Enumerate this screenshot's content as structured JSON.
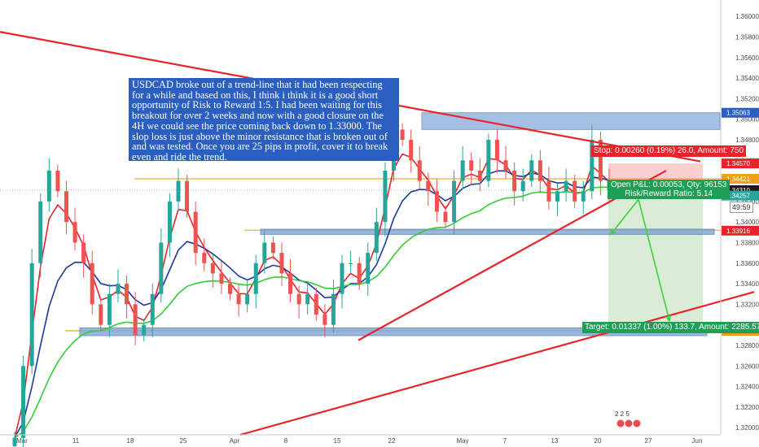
{
  "note": {
    "text": "USDCAD broke out of a trend-line that it had been respecting for a while and based on this, I think i think it is a good short opportunity of Risk to Reward 1:5. I had been waiting for this breakout for over 2 weeks and now with a good closure on the 4H we could see the price coming back down to 1.33000. The slop loss is just above the minor resistance that is broken out of and was tested. Once you are 25 pips in profit, cover it to break even and ride the trend."
  },
  "position": {
    "stop_label": "Stop: 0.00260 (0.19%) 26.0, Amount: 750",
    "open_pl_label": "Open P&L: 0.00053, Qty: 96153",
    "risk_reward_label": "Risk/Reward Ratio: 5.14",
    "target_label": "Target: 0.01337 (1.00%) 133.7, Amount: 2285.57"
  },
  "countdown": "49:59",
  "event_markers": "2 2 5",
  "colors": {
    "trendline": "#e8232a",
    "orange_level": "#f0a017",
    "zone": "#7fa6d6",
    "ema_fast": "#e8232a",
    "ema_mid": "#1a3a9c",
    "ema_slow": "#33cc33",
    "candle_up": "#26a69a",
    "candle_down": "#ef5350",
    "stop_zone": "#f7c6c6",
    "target_zone": "#d5ead0"
  },
  "chart_data": {
    "type": "candlestick",
    "symbol": "USDCAD",
    "timeframe": "4H",
    "x_ticks": [
      "Mar",
      "11",
      "18",
      "25",
      "Apr",
      "8",
      "15",
      "22",
      "May",
      "7",
      "13",
      "20",
      "27",
      "Jun"
    ],
    "y_ticks": [
      "1.36000",
      "1.35800",
      "1.35600",
      "1.35400",
      "1.35200",
      "1.35000",
      "1.34800",
      "1.34600",
      "1.34400",
      "1.34200",
      "1.34000",
      "1.33800",
      "1.33600",
      "1.33400",
      "1.33200",
      "1.33000",
      "1.32800",
      "1.32600",
      "1.32400",
      "1.32200",
      "1.32000"
    ],
    "ylim": [
      1.3193,
      1.3616
    ],
    "price_labels": [
      {
        "value": 1.35063,
        "text": "1.35063",
        "color": "#2a5ebf"
      },
      {
        "value": 1.3457,
        "text": "1.34570",
        "color": "#e8232a"
      },
      {
        "value": 1.34421,
        "text": "1.34421",
        "color": "#f0a017"
      },
      {
        "value": 1.3431,
        "text": "1.34310",
        "color": "#1a1a1a"
      },
      {
        "value": 1.34257,
        "text": "1.34257",
        "color": "#26a69a"
      },
      {
        "value": 1.33916,
        "text": "1.33916",
        "color": "#e8232a"
      },
      {
        "value": 1.32973,
        "text": "1.32973",
        "color": "#f0a017"
      },
      {
        "value": 1.32942,
        "text": "1.32942",
        "color": "#f0a017"
      }
    ],
    "horizontal_levels": {
      "orange_upper": 1.34421,
      "orange_lower": 1.32942,
      "zone_top": [
        1.35063,
        1.349
      ],
      "zone_mid": [
        1.3393,
        1.3388
      ],
      "zone_bottom": [
        1.3297,
        1.32895
      ]
    },
    "trendlines": [
      {
        "from": [
          0,
          1.3585
        ],
        "to": [
          860,
          1.3459
        ]
      },
      {
        "from": [
          440,
          1.3285
        ],
        "to": [
          818,
          1.345
        ]
      },
      {
        "from": [
          295,
          1.3193
        ],
        "to": [
          926,
          1.3332
        ]
      }
    ],
    "close_series": [
      1.319,
      1.326,
      1.336,
      1.342,
      1.345,
      1.343,
      1.34,
      1.338,
      1.336,
      1.332,
      1.33,
      1.333,
      1.334,
      1.332,
      1.329,
      1.33,
      1.333,
      1.338,
      1.342,
      1.344,
      1.341,
      1.337,
      1.336,
      1.335,
      1.334,
      1.333,
      1.332,
      1.333,
      1.336,
      1.338,
      1.337,
      1.335,
      1.333,
      1.332,
      1.333,
      1.331,
      1.33,
      1.333,
      1.336,
      1.336,
      1.334,
      1.337,
      1.34,
      1.345,
      1.349,
      1.348,
      1.346,
      1.344,
      1.343,
      1.341,
      1.34,
      1.344,
      1.346,
      1.345,
      1.344,
      1.348,
      1.346,
      1.345,
      1.343,
      1.344,
      1.346,
      1.344,
      1.342,
      1.343,
      1.344,
      1.342,
      1.343,
      1.348,
      1.344,
      1.3431
    ]
  }
}
